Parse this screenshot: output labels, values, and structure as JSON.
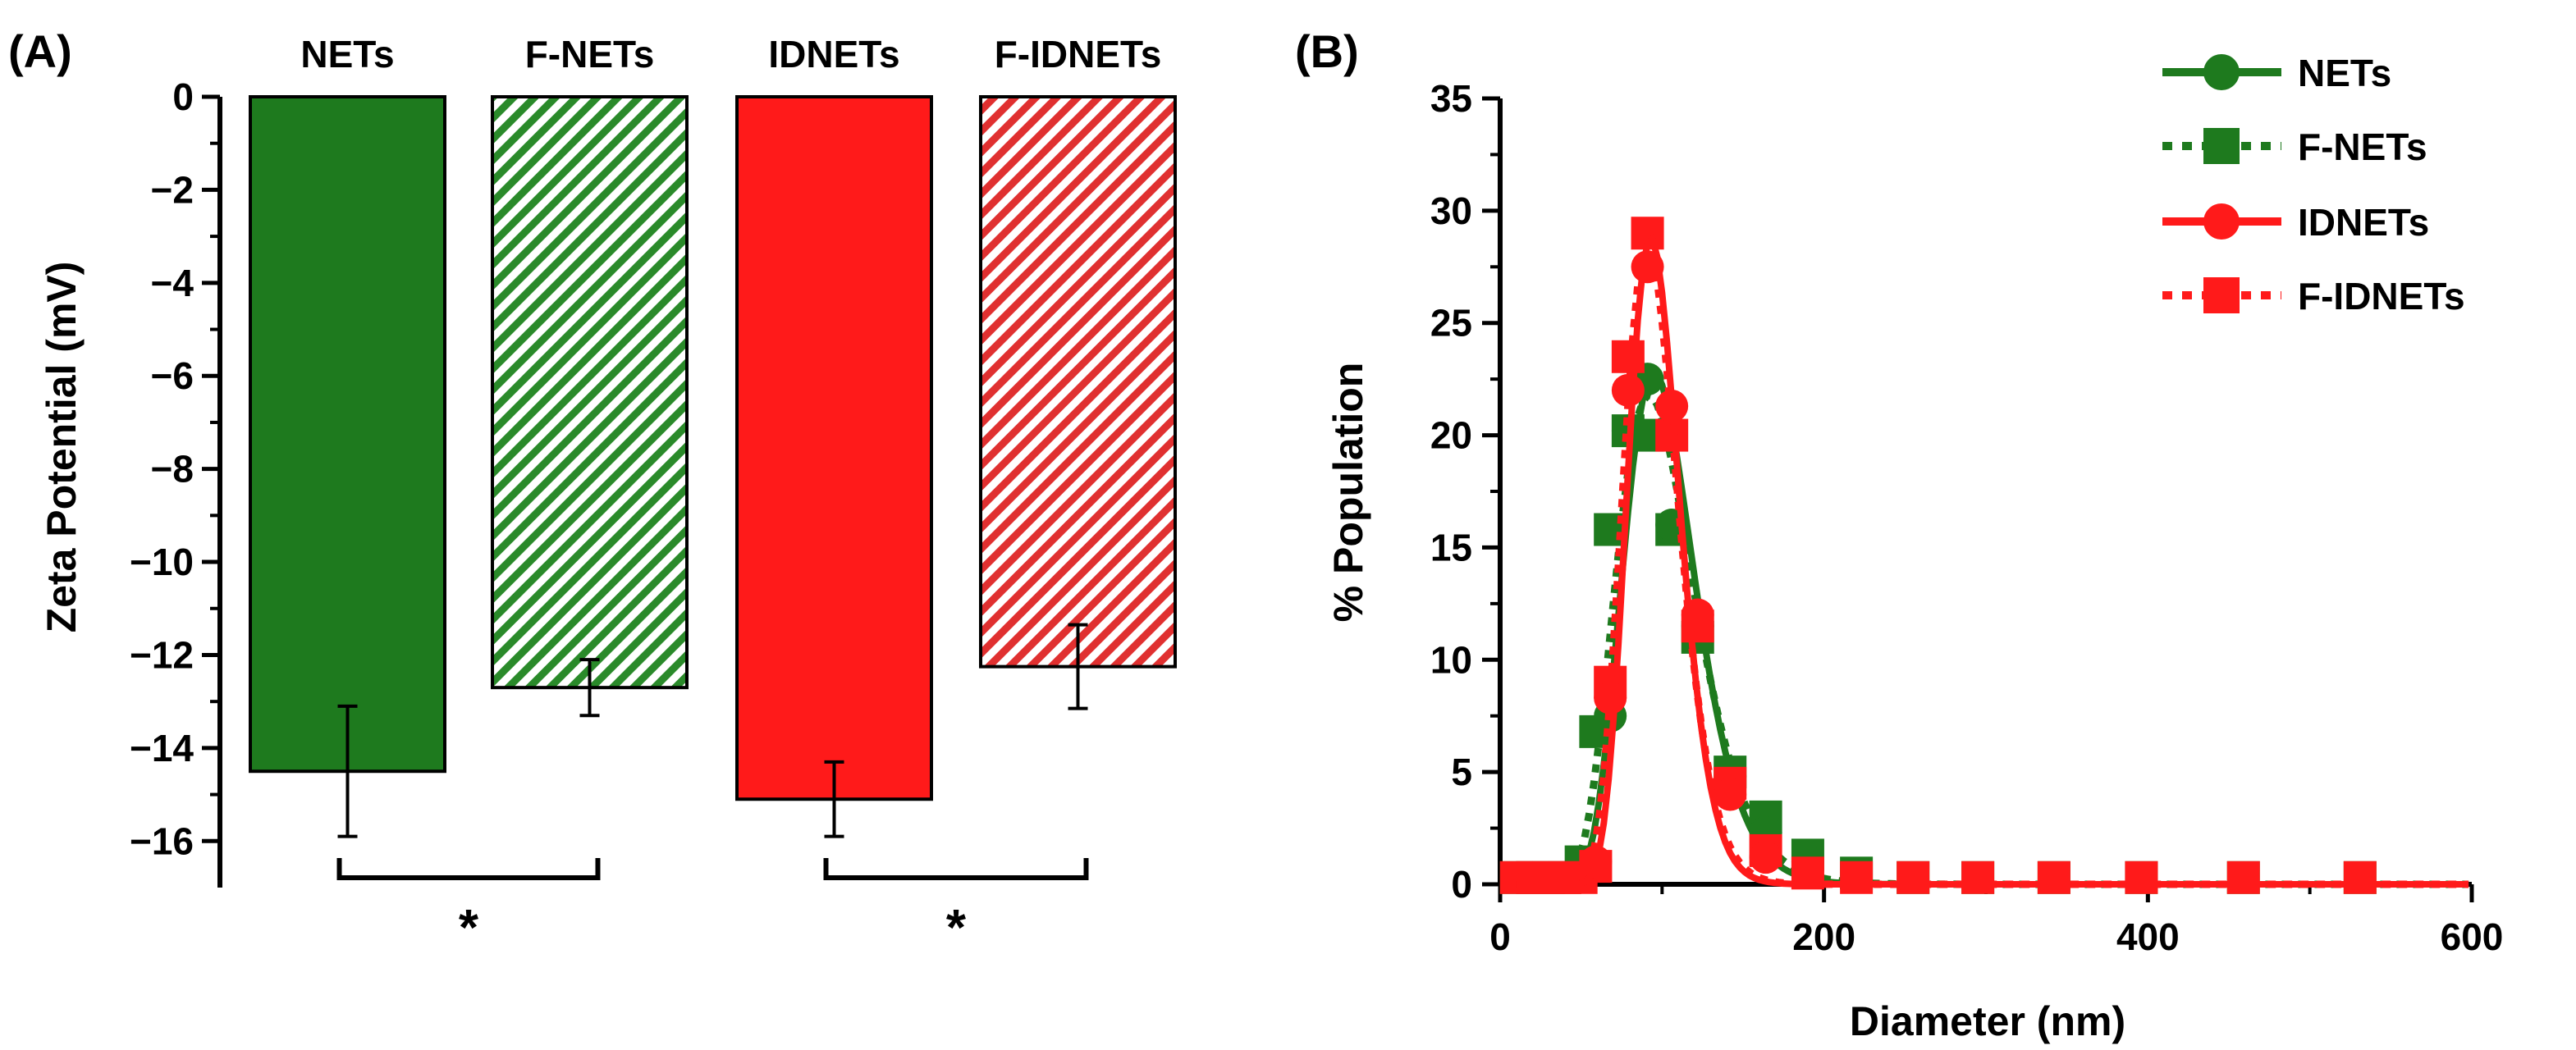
{
  "colors": {
    "green": "#1e7a1e",
    "green_hatch": "#2a8a2a",
    "red": "#ff1a1a",
    "red_hatch": "#e03030",
    "axis": "#000000"
  },
  "panel_a": {
    "label": "(A)",
    "significance_marker": "*"
  },
  "panel_b": {
    "label": "(B)"
  },
  "chart_data": [
    {
      "type": "bar",
      "categories": [
        "NETs",
        "F-NETs",
        "IDNETs",
        "F-IDNETs"
      ],
      "values": [
        -14.5,
        -12.7,
        -15.1,
        -12.25
      ],
      "errors": [
        1.4,
        0.6,
        0.8,
        0.9
      ],
      "patterns": [
        "solid",
        "hatched",
        "solid",
        "hatched"
      ],
      "bar_colors": [
        "#1e7a1e",
        "#2a8a2a",
        "#ff1a1a",
        "#e03030"
      ],
      "ylabel": "Zeta Potential (mV)",
      "ylim": [
        -17,
        0
      ],
      "yticks": [
        0,
        -2,
        -4,
        -6,
        -8,
        -10,
        -12,
        -14,
        -16
      ],
      "ytick_labels": [
        "0",
        "−2",
        "−4",
        "−6",
        "−8",
        "−10",
        "−12",
        "−14",
        "−16"
      ],
      "significance": [
        {
          "pair": [
            "NETs",
            "F-NETs"
          ],
          "label": "*"
        },
        {
          "pair": [
            "IDNETs",
            "F-IDNETs"
          ],
          "label": "*"
        }
      ]
    },
    {
      "type": "scatter",
      "xlabel": "Diameter (nm)",
      "ylabel": "% Population",
      "xlim": [
        0,
        600
      ],
      "ylim": [
        0,
        35
      ],
      "xticks": [
        0,
        200,
        400,
        600
      ],
      "yticks": [
        0,
        5,
        10,
        15,
        20,
        25,
        30,
        35
      ],
      "legend_position": "top-right",
      "series": [
        {
          "name": "NETs",
          "color": "#1e7a1e",
          "marker": "circle",
          "line": "solid",
          "x": [
            68,
            79,
            91,
            106,
            122,
            142,
            164,
            190
          ],
          "y": [
            7.5,
            20.2,
            22.5,
            16.0,
            11.5,
            4.8,
            2.3,
            1.0
          ],
          "fit_center": 95,
          "fit_sigma": 22,
          "fit_peak": 22.8
        },
        {
          "name": "F-NETs",
          "color": "#1e7a1e",
          "marker": "square",
          "line": "dotted",
          "x": [
            10,
            20,
            30,
            40,
            50,
            59,
            68,
            79,
            91,
            106,
            122,
            142,
            164,
            190,
            220,
            255,
            295,
            342,
            396,
            459,
            531
          ],
          "y": [
            0.3,
            0.3,
            0.3,
            0.3,
            1.0,
            6.8,
            15.8,
            20.2,
            20.0,
            15.8,
            11.0,
            5.0,
            3.0,
            1.3,
            0.5,
            0.3,
            0.3,
            0.3,
            0.3,
            0.3,
            0.3
          ],
          "fit_center": 92,
          "fit_sigma": 24,
          "fit_peak": 21.8
        },
        {
          "name": "IDNETs",
          "color": "#ff1a1a",
          "marker": "circle",
          "line": "solid",
          "x": [
            59,
            68,
            79,
            91,
            106,
            122,
            142,
            164
          ],
          "y": [
            1.0,
            8.3,
            22.0,
            27.5,
            21.3,
            12.0,
            4.0,
            1.2
          ],
          "fit_center": 93,
          "fit_sigma": 16,
          "fit_peak": 28.8
        },
        {
          "name": "F-IDNETs",
          "color": "#ff1a1a",
          "marker": "square",
          "line": "dotted",
          "x": [
            10,
            20,
            30,
            40,
            50,
            59,
            68,
            79,
            91,
            106,
            122,
            142,
            164,
            190,
            220,
            255,
            295,
            342,
            396,
            459,
            531
          ],
          "y": [
            0.3,
            0.3,
            0.3,
            0.3,
            0.3,
            0.8,
            9.0,
            23.5,
            29.0,
            20.0,
            11.5,
            4.5,
            1.5,
            0.5,
            0.3,
            0.3,
            0.3,
            0.3,
            0.3,
            0.3,
            0.3
          ],
          "fit_center": 91,
          "fit_sigma": 17,
          "fit_peak": 28.5
        }
      ]
    }
  ]
}
